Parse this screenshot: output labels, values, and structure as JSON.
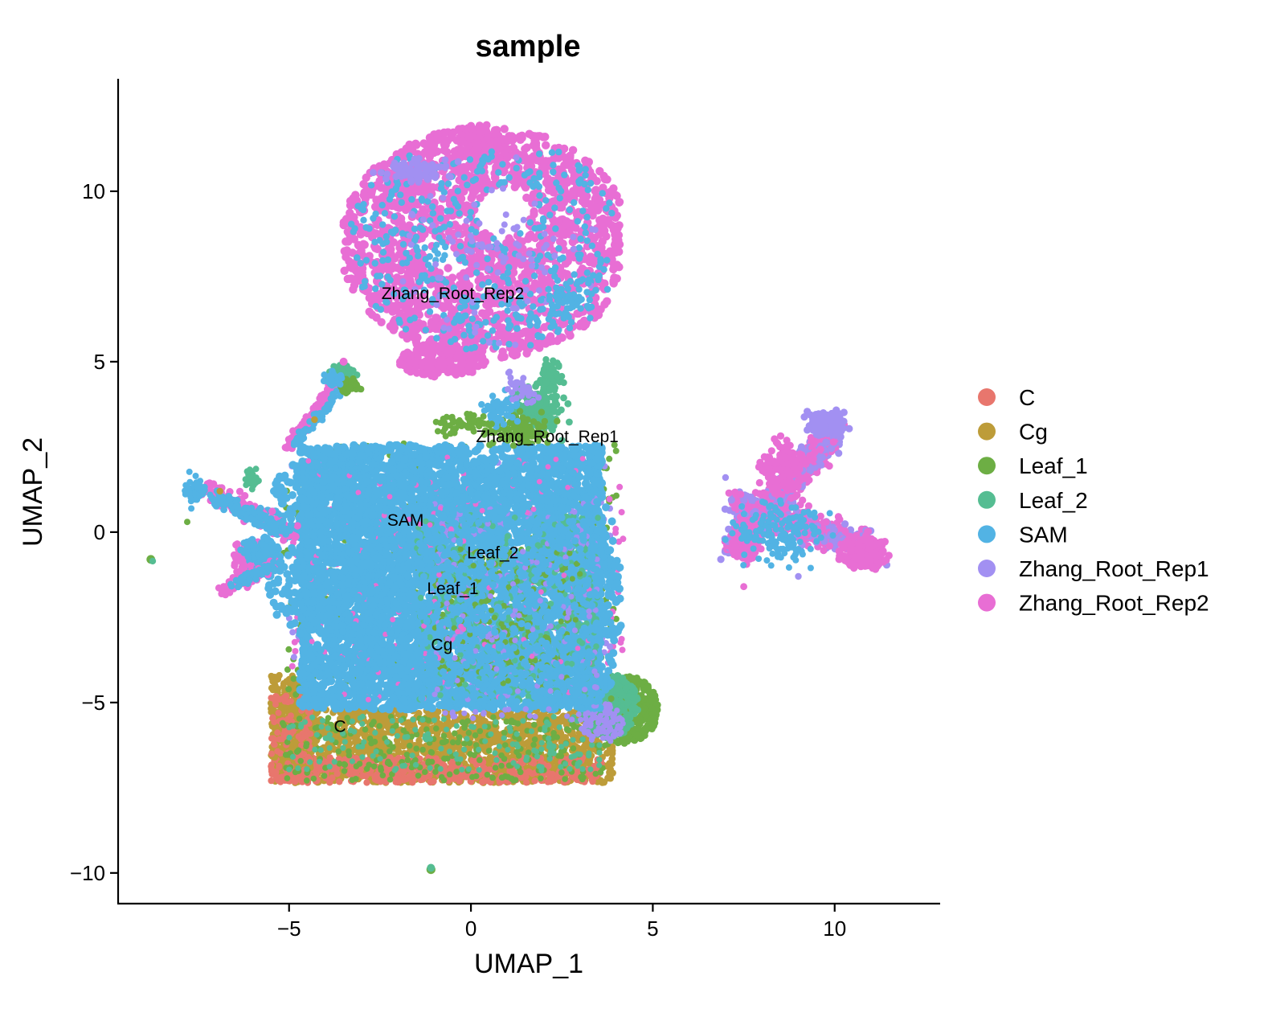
{
  "chart_data": {
    "type": "scatter",
    "title": "sample",
    "xlabel": "UMAP_1",
    "ylabel": "UMAP_2",
    "xlim": [
      -9.7,
      12.9
    ],
    "ylim": [
      -10.9,
      13.3
    ],
    "x_ticks": [
      -5,
      0,
      5,
      10
    ],
    "y_ticks": [
      -10,
      -5,
      0,
      5,
      10
    ],
    "x_tick_labels": [
      "−5",
      "0",
      "5",
      "10"
    ],
    "y_tick_labels": [
      "−10",
      "−5",
      "0",
      "5",
      "10"
    ],
    "grid": false,
    "legend_position": "right",
    "series": [
      {
        "name": "C",
        "color": "#E8766D"
      },
      {
        "name": "Cg",
        "color": "#BD9C39"
      },
      {
        "name": "Leaf_1",
        "color": "#6DAE44"
      },
      {
        "name": "Leaf_2",
        "color": "#55BD92"
      },
      {
        "name": "SAM",
        "color": "#52B3E4"
      },
      {
        "name": "Zhang_Root_Rep1",
        "color": "#A290F2"
      },
      {
        "name": "Zhang_Root_Rep2",
        "color": "#E86ED4"
      }
    ],
    "cluster_labels": [
      {
        "text": "Zhang_Root_Rep2",
        "x": -0.5,
        "y": 7.0
      },
      {
        "text": "Zhang_Root_Rep1",
        "x": 2.1,
        "y": 2.8
      },
      {
        "text": "SAM",
        "x": -1.8,
        "y": 0.35
      },
      {
        "text": "Leaf_2",
        "x": 0.6,
        "y": -0.6
      },
      {
        "text": "Leaf_1",
        "x": -0.5,
        "y": -1.65
      },
      {
        "text": "Cg",
        "x": -0.8,
        "y": -3.3
      },
      {
        "text": "C",
        "x": -3.6,
        "y": -5.7
      }
    ]
  }
}
